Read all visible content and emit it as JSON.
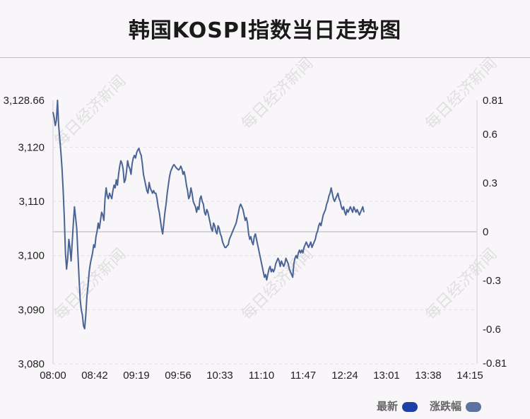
{
  "title": "韩国KOSPI指数当日走势图",
  "watermark": "每日经济新闻",
  "legend": {
    "latest_label": "最新",
    "change_label": "涨跌幅"
  },
  "colors": {
    "line": "#4a6496",
    "latest_swatch": "#1f3fa8",
    "change_swatch": "#5e72a0",
    "baseline": "#c8c8c8",
    "grid": "#e2dfe2"
  },
  "chart_data": {
    "type": "line",
    "x_ticks": [
      "08:00",
      "08:42",
      "09:19",
      "09:56",
      "10:33",
      "11:10",
      "11:47",
      "12:24",
      "13:01",
      "13:38",
      "14:15"
    ],
    "y_left_ticks": [
      "3,128.66",
      "3,120",
      "3,110",
      "3,100",
      "3,090",
      "3,080"
    ],
    "y_left_tick_values": [
      3128.66,
      3120,
      3110,
      3100,
      3090,
      3080
    ],
    "y_right_ticks": [
      "0.81",
      "0.6",
      "0.3",
      "0",
      "-0.3",
      "-0.6",
      "-0.81"
    ],
    "y_right_tick_values": [
      0.81,
      0.6,
      0.3,
      0,
      -0.3,
      -0.6,
      -0.81
    ],
    "ylim": [
      3080,
      3128.66
    ],
    "baseline": 3103.5,
    "x_minutes_range": [
      0,
      375
    ],
    "series": [
      {
        "values": [
          [
            0,
            3126.5
          ],
          [
            1,
            3125.5
          ],
          [
            2,
            3124.0
          ],
          [
            3,
            3125.0
          ],
          [
            4,
            3128.66
          ],
          [
            5,
            3124.0
          ],
          [
            6,
            3121.5
          ],
          [
            7,
            3119.0
          ],
          [
            8,
            3116.0
          ],
          [
            9,
            3112.0
          ],
          [
            10,
            3107.0
          ],
          [
            11,
            3100.5
          ],
          [
            12,
            3097.5
          ],
          [
            13,
            3099.5
          ],
          [
            14,
            3103.0
          ],
          [
            15,
            3101.5
          ],
          [
            16,
            3099.0
          ],
          [
            17,
            3102.5
          ],
          [
            18,
            3106.0
          ],
          [
            19,
            3109.0
          ],
          [
            20,
            3107.0
          ],
          [
            21,
            3105.0
          ],
          [
            22,
            3100.5
          ],
          [
            23,
            3096.0
          ],
          [
            24,
            3092.0
          ],
          [
            25,
            3090.0
          ],
          [
            26,
            3089.0
          ],
          [
            27,
            3087.0
          ],
          [
            28,
            3086.5
          ],
          [
            29,
            3089.0
          ],
          [
            30,
            3092.5
          ],
          [
            31,
            3094.5
          ],
          [
            32,
            3097.0
          ],
          [
            33,
            3098.5
          ],
          [
            34,
            3099.5
          ],
          [
            35,
            3100.5
          ],
          [
            36,
            3102.0
          ],
          [
            37,
            3101.5
          ],
          [
            38,
            3103.5
          ],
          [
            39,
            3104.5
          ],
          [
            40,
            3106.0
          ],
          [
            41,
            3105.0
          ],
          [
            42,
            3106.5
          ],
          [
            43,
            3108.0
          ],
          [
            44,
            3107.5
          ],
          [
            45,
            3106.5
          ],
          [
            46,
            3110.5
          ],
          [
            47,
            3112.5
          ],
          [
            48,
            3111.0
          ],
          [
            49,
            3110.5
          ],
          [
            50,
            3111.5
          ],
          [
            51,
            3111.0
          ],
          [
            52,
            3110.5
          ],
          [
            53,
            3112.0
          ],
          [
            54,
            3113.0
          ],
          [
            55,
            3112.5
          ],
          [
            56,
            3114.0
          ],
          [
            57,
            3113.0
          ],
          [
            58,
            3115.0
          ],
          [
            59,
            3116.5
          ],
          [
            60,
            3117.5
          ],
          [
            61,
            3117.0
          ],
          [
            62,
            3116.0
          ],
          [
            63,
            3113.5
          ],
          [
            64,
            3114.0
          ],
          [
            65,
            3115.5
          ],
          [
            66,
            3117.5
          ],
          [
            67,
            3116.5
          ],
          [
            68,
            3116.0
          ],
          [
            69,
            3115.0
          ],
          [
            70,
            3117.0
          ],
          [
            71,
            3118.0
          ],
          [
            72,
            3118.5
          ],
          [
            73,
            3118.0
          ],
          [
            74,
            3119.0
          ],
          [
            75,
            3119.5
          ],
          [
            76,
            3119.8
          ],
          [
            77,
            3119.0
          ],
          [
            78,
            3118.5
          ],
          [
            79,
            3117.0
          ],
          [
            80,
            3115.0
          ],
          [
            81,
            3114.0
          ],
          [
            82,
            3113.0
          ],
          [
            83,
            3112.0
          ],
          [
            84,
            3111.5
          ],
          [
            85,
            3113.5
          ],
          [
            86,
            3112.5
          ],
          [
            87,
            3112.0
          ],
          [
            88,
            3111.5
          ],
          [
            89,
            3112.0
          ],
          [
            90,
            3111.5
          ],
          [
            91,
            3111.5
          ],
          [
            92,
            3110.5
          ],
          [
            93,
            3109.0
          ],
          [
            94,
            3108.0
          ],
          [
            95,
            3106.5
          ],
          [
            96,
            3105.0
          ],
          [
            97,
            3104.0
          ],
          [
            98,
            3106.0
          ],
          [
            99,
            3108.0
          ],
          [
            100,
            3109.5
          ],
          [
            101,
            3111.5
          ],
          [
            102,
            3113.0
          ],
          [
            103,
            3114.5
          ],
          [
            104,
            3115.5
          ],
          [
            105,
            3116.0
          ],
          [
            106,
            3116.5
          ],
          [
            107,
            3116.8
          ],
          [
            108,
            3116.5
          ],
          [
            109,
            3116.2
          ],
          [
            110,
            3116.0
          ],
          [
            111,
            3115.8
          ],
          [
            112,
            3116.0
          ],
          [
            113,
            3116.5
          ],
          [
            114,
            3116.0
          ],
          [
            115,
            3115.0
          ],
          [
            116,
            3115.5
          ],
          [
            117,
            3114.5
          ],
          [
            118,
            3113.0
          ],
          [
            119,
            3112.0
          ],
          [
            120,
            3110.5
          ],
          [
            121,
            3111.0
          ],
          [
            122,
            3112.5
          ],
          [
            123,
            3111.5
          ],
          [
            124,
            3110.0
          ],
          [
            125,
            3109.5
          ],
          [
            126,
            3109.0
          ],
          [
            127,
            3108.0
          ],
          [
            128,
            3109.0
          ],
          [
            129,
            3108.5
          ],
          [
            130,
            3110.5
          ],
          [
            131,
            3111.0
          ],
          [
            132,
            3110.0
          ],
          [
            133,
            3109.5
          ],
          [
            134,
            3108.0
          ],
          [
            135,
            3107.5
          ],
          [
            136,
            3108.5
          ],
          [
            137,
            3108.0
          ],
          [
            138,
            3107.0
          ],
          [
            139,
            3106.0
          ],
          [
            140,
            3105.0
          ],
          [
            141,
            3104.5
          ],
          [
            142,
            3106.0
          ],
          [
            143,
            3105.5
          ],
          [
            144,
            3104.5
          ],
          [
            145,
            3104.0
          ],
          [
            146,
            3105.5
          ],
          [
            147,
            3105.0
          ],
          [
            148,
            3104.0
          ],
          [
            149,
            3103.5
          ],
          [
            150,
            3102.5
          ],
          [
            151,
            3102.0
          ],
          [
            152,
            3101.5
          ],
          [
            153,
            3101.5
          ],
          [
            154,
            3101.8
          ],
          [
            155,
            3102.0
          ],
          [
            156,
            3103.0
          ],
          [
            157,
            3103.5
          ],
          [
            158,
            3104.0
          ],
          [
            159,
            3104.5
          ],
          [
            160,
            3105.0
          ],
          [
            161,
            3105.5
          ],
          [
            162,
            3106.0
          ],
          [
            163,
            3107.0
          ],
          [
            164,
            3108.0
          ],
          [
            165,
            3109.0
          ],
          [
            166,
            3109.5
          ],
          [
            167,
            3109.0
          ],
          [
            168,
            3108.5
          ],
          [
            169,
            3107.5
          ],
          [
            170,
            3106.5
          ],
          [
            171,
            3107.0
          ],
          [
            172,
            3106.0
          ],
          [
            173,
            3104.0
          ],
          [
            174,
            3103.0
          ],
          [
            175,
            3103.5
          ],
          [
            176,
            3102.5
          ],
          [
            177,
            3102.0
          ],
          [
            178,
            3103.5
          ],
          [
            179,
            3104.0
          ],
          [
            180,
            3103.0
          ],
          [
            181,
            3102.0
          ],
          [
            182,
            3101.0
          ],
          [
            183,
            3100.0
          ],
          [
            184,
            3099.0
          ],
          [
            185,
            3098.0
          ],
          [
            186,
            3097.0
          ],
          [
            187,
            3096.0
          ],
          [
            188,
            3096.5
          ],
          [
            189,
            3095.5
          ],
          [
            190,
            3096.5
          ],
          [
            191,
            3097.5
          ],
          [
            192,
            3098.0
          ],
          [
            193,
            3097.0
          ],
          [
            194,
            3097.5
          ],
          [
            195,
            3097.0
          ],
          [
            196,
            3097.5
          ],
          [
            197,
            3098.5
          ],
          [
            198,
            3099.0
          ],
          [
            199,
            3099.5
          ],
          [
            200,
            3099.0
          ],
          [
            201,
            3098.0
          ],
          [
            202,
            3099.0
          ],
          [
            203,
            3098.5
          ],
          [
            204,
            3098.0
          ],
          [
            205,
            3098.5
          ],
          [
            206,
            3099.5
          ],
          [
            207,
            3099.0
          ],
          [
            208,
            3098.5
          ],
          [
            209,
            3097.5
          ],
          [
            210,
            3097.0
          ],
          [
            211,
            3096.5
          ],
          [
            212,
            3096.0
          ],
          [
            213,
            3098.5
          ],
          [
            214,
            3099.5
          ],
          [
            215,
            3100.0
          ],
          [
            216,
            3099.5
          ],
          [
            217,
            3100.5
          ],
          [
            218,
            3101.0
          ],
          [
            219,
            3100.5
          ],
          [
            220,
            3101.0
          ],
          [
            221,
            3100.5
          ],
          [
            222,
            3101.5
          ],
          [
            223,
            3102.0
          ],
          [
            224,
            3102.5
          ],
          [
            225,
            3102.0
          ],
          [
            226,
            3101.5
          ],
          [
            227,
            3102.0
          ],
          [
            228,
            3102.5
          ],
          [
            229,
            3101.5
          ],
          [
            230,
            3102.0
          ],
          [
            231,
            3102.5
          ],
          [
            232,
            3103.0
          ],
          [
            233,
            3104.0
          ],
          [
            234,
            3104.5
          ],
          [
            235,
            3105.5
          ],
          [
            236,
            3106.0
          ],
          [
            237,
            3105.5
          ],
          [
            238,
            3106.5
          ],
          [
            239,
            3107.5
          ],
          [
            240,
            3108.0
          ],
          [
            241,
            3108.5
          ],
          [
            242,
            3109.5
          ],
          [
            243,
            3110.0
          ],
          [
            244,
            3111.0
          ],
          [
            245,
            3111.5
          ],
          [
            246,
            3112.5
          ],
          [
            247,
            3111.5
          ],
          [
            248,
            3110.5
          ],
          [
            249,
            3110.0
          ],
          [
            250,
            3110.5
          ],
          [
            251,
            3111.0
          ],
          [
            252,
            3111.5
          ],
          [
            253,
            3110.5
          ],
          [
            254,
            3110.0
          ],
          [
            255,
            3109.0
          ],
          [
            256,
            3108.5
          ],
          [
            257,
            3109.0
          ],
          [
            258,
            3108.0
          ],
          [
            259,
            3107.5
          ],
          [
            260,
            3108.5
          ],
          [
            261,
            3108.0
          ],
          [
            262,
            3108.5
          ],
          [
            263,
            3109.0
          ],
          [
            264,
            3108.5
          ],
          [
            265,
            3108.0
          ],
          [
            266,
            3109.0
          ],
          [
            267,
            3108.5
          ],
          [
            268,
            3108.0
          ],
          [
            269,
            3108.5
          ],
          [
            270,
            3108.0
          ],
          [
            271,
            3107.5
          ],
          [
            272,
            3108.0
          ],
          [
            273,
            3108.5
          ],
          [
            274,
            3109.0
          ],
          [
            275,
            3108.0
          ]
        ]
      }
    ],
    "grid": true,
    "legend_position": "bottom-right"
  }
}
